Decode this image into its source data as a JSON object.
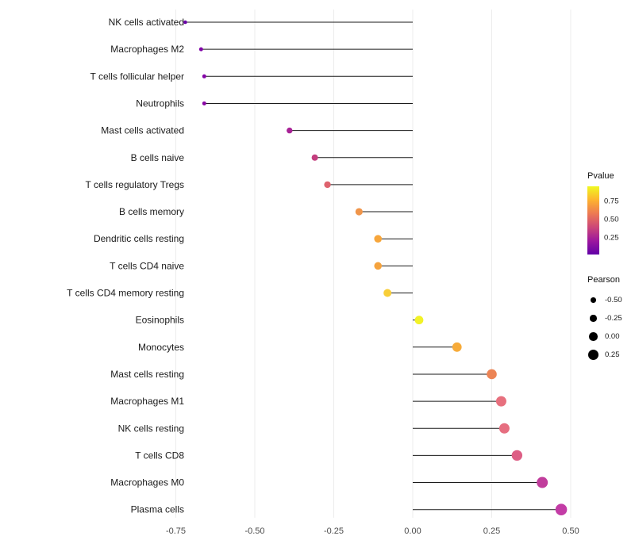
{
  "chart_data": {
    "type": "lollipop",
    "orientation": "horizontal",
    "title": "",
    "xlabel": "",
    "ylabel": "",
    "xlim": [
      -0.78,
      0.56
    ],
    "x_ticks": [
      -0.75,
      -0.5,
      -0.25,
      0,
      0.25,
      0.5
    ],
    "x_tick_labels": [
      "-0.75",
      "-0.50",
      "-0.25",
      "0.00",
      "0.25",
      "0.50"
    ],
    "color_encoding": "Pvalue",
    "size_encoding": "Pearson",
    "points": [
      {
        "label": "NK cells activated",
        "pearson": -0.72,
        "pvalue": 0.02,
        "color": "#6a01a8"
      },
      {
        "label": "Macrophages M2",
        "pearson": -0.67,
        "pvalue": 0.05,
        "color": "#8004a8"
      },
      {
        "label": "T cells follicular helper",
        "pearson": -0.66,
        "pvalue": 0.06,
        "color": "#8405a7"
      },
      {
        "label": "Neutrophils",
        "pearson": -0.66,
        "pvalue": 0.07,
        "color": "#8a09a5"
      },
      {
        "label": "Mast cells activated",
        "pearson": -0.39,
        "pvalue": 0.16,
        "color": "#a82296"
      },
      {
        "label": "B cells naive",
        "pearson": -0.31,
        "pvalue": 0.33,
        "color": "#c43e7f"
      },
      {
        "label": "T cells regulatory  Tregs",
        "pearson": -0.27,
        "pvalue": 0.48,
        "color": "#de636e"
      },
      {
        "label": "B cells memory",
        "pearson": -0.17,
        "pvalue": 0.6,
        "color": "#f0954a"
      },
      {
        "label": "Dendritic cells resting",
        "pearson": -0.11,
        "pvalue": 0.68,
        "color": "#f7a63b"
      },
      {
        "label": "T cells CD4 naive",
        "pearson": -0.11,
        "pvalue": 0.66,
        "color": "#f5a33d"
      },
      {
        "label": "T cells CD4 memory resting",
        "pearson": -0.08,
        "pvalue": 0.8,
        "color": "#f8ce38"
      },
      {
        "label": "Eosinophils",
        "pearson": 0.02,
        "pvalue": 0.97,
        "color": "#f2f227"
      },
      {
        "label": "Monocytes",
        "pearson": 0.14,
        "pvalue": 0.68,
        "color": "#f7ab39"
      },
      {
        "label": "Mast cells resting",
        "pearson": 0.25,
        "pvalue": 0.55,
        "color": "#ec8455"
      },
      {
        "label": "Macrophages M1",
        "pearson": 0.28,
        "pvalue": 0.45,
        "color": "#e7707e"
      },
      {
        "label": "NK cells resting",
        "pearson": 0.29,
        "pvalue": 0.44,
        "color": "#e66e80"
      },
      {
        "label": "T cells CD8",
        "pearson": 0.33,
        "pvalue": 0.38,
        "color": "#dd5e85"
      },
      {
        "label": "Macrophages M0",
        "pearson": 0.41,
        "pvalue": 0.2,
        "color": "#c13d9c"
      },
      {
        "label": "Plasma cells",
        "pearson": 0.47,
        "pvalue": 0.22,
        "color": "#c33ca6"
      }
    ]
  },
  "legend": {
    "pvalue": {
      "title": "Pvalue",
      "ticks": [
        "0.75",
        "0.50",
        "0.25"
      ],
      "gradient": [
        "#f0f921",
        "#fdb32f",
        "#ed7953",
        "#cc4778",
        "#9c179e",
        "#6100a7"
      ]
    },
    "pearson": {
      "title": "Pearson",
      "items": [
        {
          "label": "-0.50",
          "diameter": 6.5
        },
        {
          "label": "-0.25",
          "diameter": 8.5
        },
        {
          "label": "0.00",
          "diameter": 10.5
        },
        {
          "label": "0.25",
          "diameter": 13
        }
      ]
    }
  }
}
